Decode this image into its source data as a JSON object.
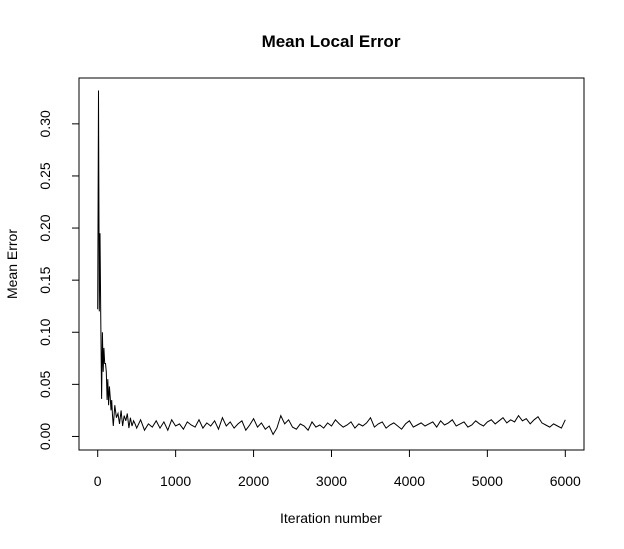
{
  "chart_data": {
    "type": "line",
    "title": "Mean Local Error",
    "xlabel": "Iteration number",
    "ylabel": "Mean Error",
    "xlim": [
      -240,
      6240
    ],
    "ylim": [
      -0.013,
      0.344
    ],
    "x_ticks": [
      0,
      1000,
      2000,
      3000,
      4000,
      5000,
      6000
    ],
    "x_tick_labels": [
      "0",
      "1000",
      "2000",
      "3000",
      "4000",
      "5000",
      "6000"
    ],
    "y_ticks": [
      0.0,
      0.05,
      0.1,
      0.15,
      0.2,
      0.25,
      0.3
    ],
    "y_tick_labels": [
      "0.00",
      "0.05",
      "0.10",
      "0.15",
      "0.20",
      "0.25",
      "0.30"
    ],
    "grid": false,
    "legend": "none",
    "line_color": "#000000",
    "series": [
      {
        "x": [
          0,
          10,
          20,
          30,
          40,
          50,
          60,
          70,
          80,
          90,
          100,
          110,
          120,
          130,
          140,
          150,
          160,
          170,
          180,
          190,
          200,
          220,
          240,
          260,
          280,
          300,
          320,
          340,
          360,
          380,
          400,
          420,
          440,
          460,
          480,
          500,
          550,
          600,
          650,
          700,
          750,
          800,
          850,
          900,
          950,
          1000,
          1050,
          1100,
          1150,
          1200,
          1250,
          1300,
          1350,
          1400,
          1450,
          1500,
          1550,
          1600,
          1650,
          1700,
          1750,
          1800,
          1850,
          1900,
          1950,
          2000,
          2050,
          2100,
          2150,
          2200,
          2250,
          2300,
          2350,
          2400,
          2450,
          2500,
          2550,
          2600,
          2650,
          2700,
          2750,
          2800,
          2850,
          2900,
          2950,
          3000,
          3050,
          3100,
          3150,
          3200,
          3250,
          3300,
          3350,
          3400,
          3450,
          3500,
          3550,
          3600,
          3650,
          3700,
          3750,
          3800,
          3850,
          3900,
          3950,
          4000,
          4050,
          4100,
          4150,
          4200,
          4250,
          4300,
          4350,
          4400,
          4450,
          4500,
          4550,
          4600,
          4650,
          4700,
          4750,
          4800,
          4850,
          4900,
          4950,
          5000,
          5050,
          5100,
          5150,
          5200,
          5250,
          5300,
          5350,
          5400,
          5450,
          5500,
          5550,
          5600,
          5650,
          5700,
          5750,
          5800,
          5850,
          5900,
          5950,
          6000
        ],
        "y": [
          0.122,
          0.332,
          0.12,
          0.195,
          0.11,
          0.036,
          0.1,
          0.062,
          0.085,
          0.07,
          0.07,
          0.062,
          0.035,
          0.055,
          0.03,
          0.048,
          0.038,
          0.025,
          0.035,
          0.02,
          0.01,
          0.03,
          0.018,
          0.022,
          0.012,
          0.025,
          0.01,
          0.02,
          0.015,
          0.022,
          0.008,
          0.018,
          0.01,
          0.015,
          0.012,
          0.008,
          0.016,
          0.006,
          0.012,
          0.009,
          0.015,
          0.008,
          0.014,
          0.006,
          0.016,
          0.01,
          0.012,
          0.007,
          0.014,
          0.011,
          0.009,
          0.016,
          0.008,
          0.013,
          0.01,
          0.015,
          0.007,
          0.018,
          0.01,
          0.014,
          0.008,
          0.012,
          0.015,
          0.006,
          0.011,
          0.017,
          0.009,
          0.013,
          0.007,
          0.01,
          0.002,
          0.008,
          0.02,
          0.012,
          0.016,
          0.009,
          0.007,
          0.012,
          0.01,
          0.006,
          0.014,
          0.009,
          0.011,
          0.008,
          0.013,
          0.01,
          0.016,
          0.012,
          0.009,
          0.011,
          0.014,
          0.008,
          0.012,
          0.01,
          0.013,
          0.018,
          0.009,
          0.012,
          0.014,
          0.008,
          0.011,
          0.013,
          0.01,
          0.007,
          0.012,
          0.015,
          0.009,
          0.011,
          0.013,
          0.01,
          0.012,
          0.014,
          0.009,
          0.015,
          0.011,
          0.013,
          0.016,
          0.01,
          0.012,
          0.014,
          0.009,
          0.011,
          0.015,
          0.012,
          0.01,
          0.014,
          0.016,
          0.012,
          0.015,
          0.018,
          0.013,
          0.016,
          0.014,
          0.02,
          0.015,
          0.017,
          0.012,
          0.016,
          0.019,
          0.013,
          0.011,
          0.009,
          0.012,
          0.01,
          0.008,
          0.016
        ]
      }
    ]
  }
}
